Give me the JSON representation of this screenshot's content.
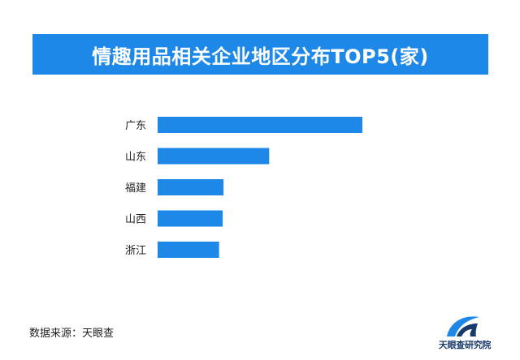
{
  "chart_data": {
    "type": "bar",
    "orientation": "horizontal",
    "title": "情趣用品相关企业地区分布TOP5(家)",
    "categories": [
      "广东",
      "山东",
      "福建",
      "山西",
      "浙江"
    ],
    "values": [
      1000,
      545,
      322,
      318,
      300
    ],
    "bar_color": "#1e88e8",
    "grid": false,
    "legend": "none"
  },
  "footer": {
    "source": "数据来源：天眼查",
    "logo_text": "天眼查研究院"
  },
  "colors": {
    "accent": "#1e88e8",
    "logo_dark": "#1a3a6b"
  }
}
